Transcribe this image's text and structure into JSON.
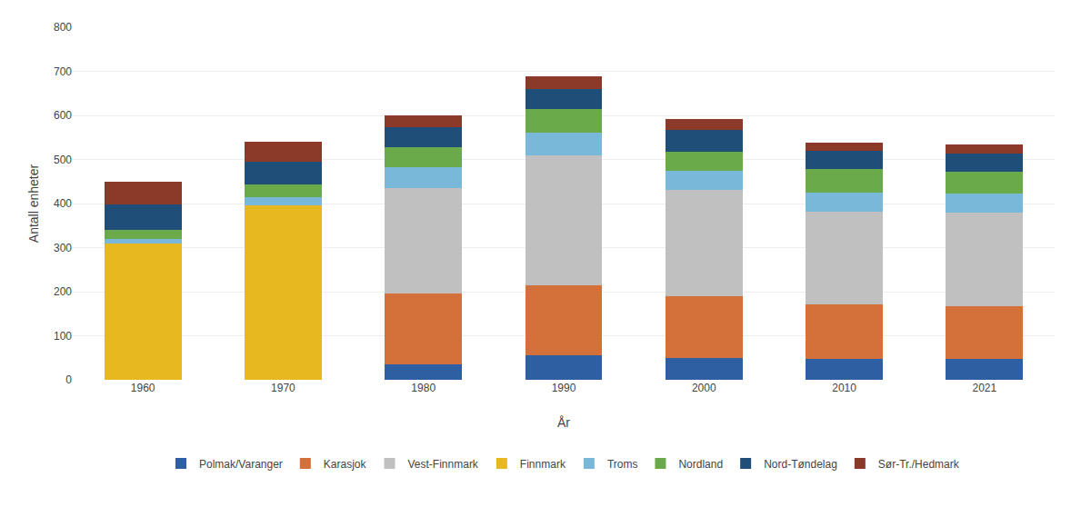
{
  "chart_data": {
    "type": "bar",
    "stacked": true,
    "xlabel": "År",
    "ylabel": "Antall enheter",
    "categories": [
      "1960",
      "1970",
      "1980",
      "1990",
      "2000",
      "2010",
      "2021"
    ],
    "series": [
      {
        "name": "Polmak/Varanger",
        "color": "#2e5fa3",
        "values": [
          0,
          0,
          35,
          55,
          50,
          47,
          47
        ]
      },
      {
        "name": "Karasjok",
        "color": "#d4713a",
        "values": [
          0,
          0,
          160,
          160,
          140,
          125,
          120
        ]
      },
      {
        "name": "Vest-Finnmark",
        "color": "#c0c0c0",
        "values": [
          0,
          0,
          240,
          295,
          240,
          210,
          213
        ]
      },
      {
        "name": "Finnmark",
        "color": "#e8b820",
        "values": [
          310,
          395,
          0,
          0,
          0,
          0,
          0
        ]
      },
      {
        "name": "Troms",
        "color": "#7ab8d9",
        "values": [
          10,
          20,
          48,
          50,
          45,
          42,
          43
        ]
      },
      {
        "name": "Nordland",
        "color": "#6aaa4b",
        "values": [
          20,
          28,
          45,
          55,
          42,
          55,
          50
        ]
      },
      {
        "name": "Nord-Tøndelag",
        "color": "#1f4e79",
        "values": [
          57,
          52,
          45,
          45,
          50,
          40,
          40
        ]
      },
      {
        "name": "Sør-Tr./Hedmark",
        "color": "#8b3a2a",
        "values": [
          53,
          45,
          28,
          28,
          25,
          20,
          22
        ]
      }
    ],
    "ylim": [
      0,
      800
    ],
    "yticks": [
      0,
      100,
      200,
      300,
      400,
      500,
      600,
      700,
      800
    ],
    "grid": true,
    "legend": "bottom"
  }
}
